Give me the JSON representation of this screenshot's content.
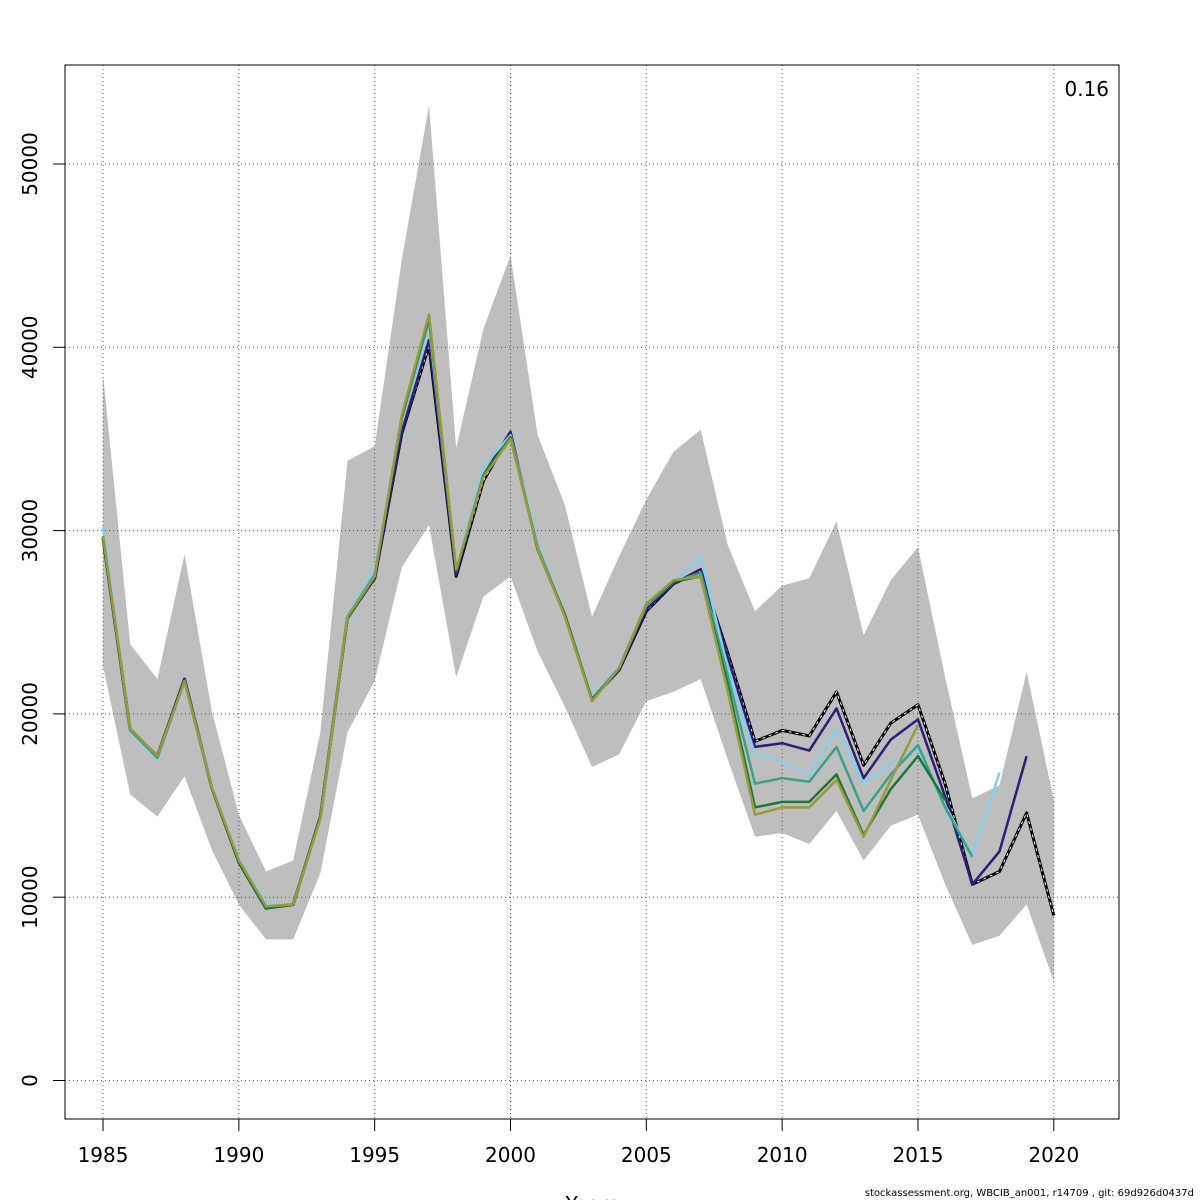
{
  "chart_data": {
    "type": "line",
    "title": "",
    "xlabel": "Years",
    "ylabel": "",
    "corner_label": "0.16",
    "xlim": [
      1983.6,
      2022.4
    ],
    "ylim": [
      -2100,
      55400
    ],
    "x_ticks": [
      1985,
      1990,
      1995,
      2000,
      2005,
      2010,
      2015,
      2020
    ],
    "y_ticks": [
      0,
      10000,
      20000,
      30000,
      40000,
      50000
    ],
    "grid": true,
    "legend": "none",
    "confidence_band": {
      "color": "#bebebe",
      "x": [
        1985,
        1986,
        1987,
        1988,
        1989,
        1990,
        1991,
        1992,
        1993,
        1994,
        1995,
        1996,
        1997,
        1998,
        1999,
        2000,
        2001,
        2002,
        2003,
        2004,
        2005,
        2006,
        2007,
        2008,
        2009,
        2010,
        2011,
        2012,
        2013,
        2014,
        2015,
        2016,
        2017,
        2018,
        2019,
        2020
      ],
      "upper": [
        38500,
        23800,
        21900,
        28700,
        20200,
        14500,
        11400,
        12000,
        19000,
        33800,
        34600,
        44800,
        53200,
        34500,
        41000,
        45000,
        35200,
        31400,
        25300,
        28600,
        31700,
        34300,
        35500,
        29200,
        25600,
        27000,
        27400,
        30500,
        24300,
        27300,
        29100,
        22000,
        15400,
        16100,
        22300,
        15300
      ],
      "lower": [
        22600,
        15600,
        14400,
        16600,
        12600,
        9600,
        7700,
        7700,
        11300,
        19000,
        21800,
        28000,
        30300,
        22000,
        26400,
        27500,
        23400,
        20400,
        17100,
        17800,
        20700,
        21200,
        21900,
        17500,
        13300,
        13500,
        12900,
        14700,
        12000,
        13900,
        14500,
        10700,
        7400,
        7900,
        9600,
        5400
      ]
    },
    "series": [
      {
        "color": "#000000",
        "dashed": true,
        "x": [
          1985,
          1986,
          1987,
          1988,
          1989,
          1990,
          1991,
          1992,
          1993,
          1994,
          1995,
          1996,
          1997,
          1998,
          1999,
          2000,
          2001,
          2002,
          2003,
          2004,
          2005,
          2006,
          2007,
          2008,
          2009,
          2010,
          2011,
          2012,
          2013,
          2014,
          2015,
          2016,
          2017,
          2018,
          2019,
          2020
        ],
        "values": [
          29600,
          19100,
          17700,
          21900,
          16000,
          11900,
          9400,
          9600,
          14400,
          25300,
          27400,
          35300,
          40100,
          27500,
          32700,
          35300,
          29000,
          25400,
          20800,
          22400,
          25600,
          27100,
          27800,
          23300,
          18500,
          19100,
          18800,
          21200,
          17200,
          19500,
          20500,
          16200,
          10700,
          11400,
          14600,
          9000
        ]
      },
      {
        "color": "#2c1f7a",
        "dashed": false,
        "x": [
          1985,
          1986,
          1987,
          1988,
          1989,
          1990,
          1991,
          1992,
          1993,
          1994,
          1995,
          1996,
          1997,
          1998,
          1999,
          2000,
          2001,
          2002,
          2003,
          2004,
          2005,
          2006,
          2007,
          2008,
          2009,
          2010,
          2011,
          2012,
          2013,
          2014,
          2015,
          2016,
          2017,
          2018,
          2019
        ],
        "values": [
          29600,
          19100,
          17700,
          21900,
          16000,
          11900,
          9400,
          9600,
          14400,
          25200,
          27400,
          35400,
          40400,
          27600,
          33000,
          35400,
          29000,
          25400,
          20800,
          22400,
          25700,
          27100,
          27900,
          23100,
          18200,
          18400,
          18000,
          20300,
          16500,
          18600,
          19700,
          15500,
          10700,
          12500,
          17700
        ]
      },
      {
        "color": "#87ceeb",
        "dashed": false,
        "x": [
          1985,
          1986,
          1987,
          1988,
          1989,
          1990,
          1991,
          1992,
          1993,
          1994,
          1995,
          1996,
          1997,
          1998,
          1999,
          2000,
          2001,
          2002,
          2003,
          2004,
          2005,
          2006,
          2007,
          2008,
          2009,
          2010,
          2011,
          2012,
          2013,
          2014,
          2015,
          2016,
          2017,
          2018
        ],
        "values": [
          30200,
          19000,
          17500,
          21800,
          16100,
          12100,
          9600,
          9600,
          14400,
          25400,
          27900,
          36000,
          41200,
          27800,
          33500,
          35200,
          29300,
          25400,
          20900,
          22600,
          25900,
          27200,
          28600,
          22500,
          17800,
          17400,
          16700,
          19200,
          16200,
          17300,
          18100,
          15000,
          12300,
          16800
        ]
      },
      {
        "color": "#3aa18b",
        "dashed": false,
        "x": [
          1985,
          1986,
          1987,
          1988,
          1989,
          1990,
          1991,
          1992,
          1993,
          1994,
          1995,
          1996,
          1997,
          1998,
          1999,
          2000,
          2001,
          2002,
          2003,
          2004,
          2005,
          2006,
          2007,
          2008,
          2009,
          2010,
          2011,
          2012,
          2013,
          2014,
          2015,
          2016,
          2017
        ],
        "values": [
          29700,
          19100,
          17600,
          21800,
          16000,
          12000,
          9500,
          9600,
          14300,
          25300,
          27600,
          36100,
          41500,
          27800,
          33000,
          35100,
          29100,
          25400,
          20700,
          22500,
          25900,
          27200,
          27700,
          22100,
          16200,
          16500,
          16300,
          18200,
          14700,
          16700,
          18300,
          14900,
          12200
        ]
      },
      {
        "color": "#1a7a38",
        "dashed": false,
        "x": [
          1985,
          1986,
          1987,
          1988,
          1989,
          1990,
          1991,
          1992,
          1993,
          1994,
          1995,
          1996,
          1997,
          1998,
          1999,
          2000,
          2001,
          2002,
          2003,
          2004,
          2005,
          2006,
          2007,
          2008,
          2009,
          2010,
          2011,
          2012,
          2013,
          2014,
          2015,
          2016
        ],
        "values": [
          29700,
          19200,
          17700,
          21800,
          16000,
          11900,
          9400,
          9600,
          14400,
          25200,
          27500,
          36200,
          41700,
          27800,
          33000,
          35100,
          29000,
          25400,
          20800,
          22500,
          26000,
          27200,
          27500,
          21600,
          14900,
          15200,
          15200,
          16700,
          13400,
          15900,
          17700,
          15300
        ]
      },
      {
        "color": "#9a9a3a",
        "dashed": false,
        "x": [
          1985,
          1986,
          1987,
          1988,
          1989,
          1990,
          1991,
          1992,
          1993,
          1994,
          1995,
          1996,
          1997,
          1998,
          1999,
          2000,
          2001,
          2002,
          2003,
          2004,
          2005,
          2006,
          2007,
          2008,
          2009,
          2010,
          2011,
          2012,
          2013,
          2014,
          2015
        ],
        "values": [
          29700,
          19200,
          17700,
          21800,
          16000,
          12000,
          9500,
          9600,
          14300,
          25300,
          27500,
          36300,
          41800,
          27900,
          32900,
          35000,
          29000,
          25300,
          20700,
          22500,
          26000,
          27300,
          27500,
          21200,
          14500,
          14900,
          14900,
          16400,
          13300,
          16400,
          19400
        ]
      }
    ]
  },
  "footer_text": "stockassessment.org, WBCIB_an001, r14709 , git: 69d926d0437d"
}
